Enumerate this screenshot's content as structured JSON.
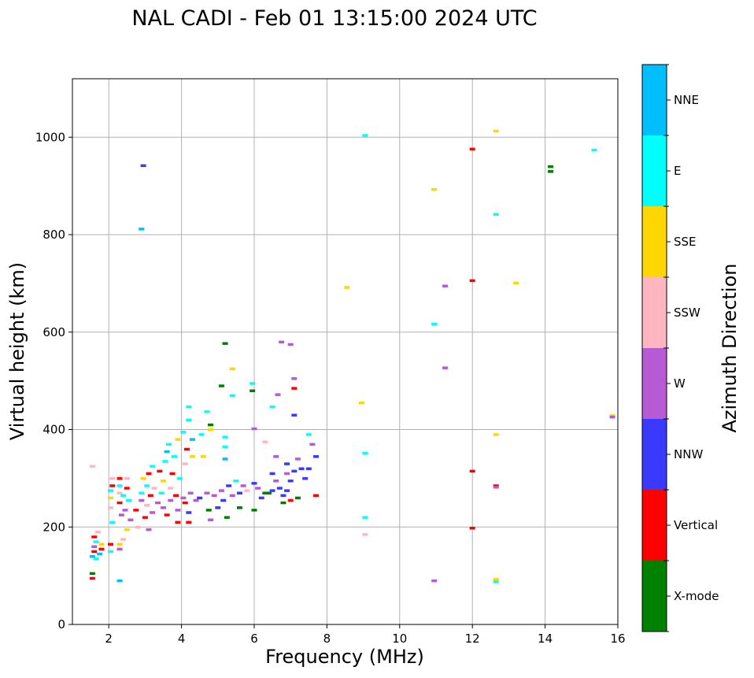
{
  "chart_data": {
    "type": "scatter",
    "title": "NAL CADI - Feb 01 13:15:00 2024 UTC",
    "xlabel": "Frequency (MHz)",
    "ylabel": "Virtual height (km)",
    "xlim": [
      1,
      16
    ],
    "ylim": [
      0,
      1120
    ],
    "xticks": [
      2,
      4,
      6,
      8,
      10,
      12,
      14,
      16
    ],
    "yticks": [
      0,
      200,
      400,
      600,
      800,
      1000
    ],
    "grid": true,
    "colorbar": {
      "label": "Azimuth Direction",
      "categories": [
        {
          "name": "X-mode",
          "color": "#008000"
        },
        {
          "name": "Vertical",
          "color": "#ff0000"
        },
        {
          "name": "NNW",
          "color": "#3a3aff"
        },
        {
          "name": "W",
          "color": "#b65ad6"
        },
        {
          "name": "SSW",
          "color": "#ffb6c1"
        },
        {
          "name": "SSE",
          "color": "#ffd700"
        },
        {
          "name": "E",
          "color": "#00ffff"
        },
        {
          "name": "NNE",
          "color": "#00bfff"
        }
      ]
    },
    "points": [
      {
        "f": 1.55,
        "h": 95,
        "c": "Vertical"
      },
      {
        "f": 1.55,
        "h": 105,
        "c": "X-mode"
      },
      {
        "f": 1.55,
        "h": 140,
        "c": "NNE"
      },
      {
        "f": 1.6,
        "h": 150,
        "c": "Vertical"
      },
      {
        "f": 1.6,
        "h": 160,
        "c": "W"
      },
      {
        "f": 1.65,
        "h": 170,
        "c": "E"
      },
      {
        "f": 1.6,
        "h": 180,
        "c": "Vertical"
      },
      {
        "f": 1.7,
        "h": 190,
        "c": "SSW"
      },
      {
        "f": 1.65,
        "h": 135,
        "c": "E"
      },
      {
        "f": 1.75,
        "h": 145,
        "c": "NNE"
      },
      {
        "f": 1.8,
        "h": 155,
        "c": "Vertical"
      },
      {
        "f": 1.8,
        "h": 165,
        "c": "SSE"
      },
      {
        "f": 1.55,
        "h": 325,
        "c": "SSW"
      },
      {
        "f": 2.05,
        "h": 150,
        "c": "E"
      },
      {
        "f": 2.05,
        "h": 165,
        "c": "Vertical"
      },
      {
        "f": 2.05,
        "h": 240,
        "c": "SSW"
      },
      {
        "f": 2.05,
        "h": 260,
        "c": "SSE"
      },
      {
        "f": 2.05,
        "h": 275,
        "c": "E"
      },
      {
        "f": 2.1,
        "h": 285,
        "c": "Vertical"
      },
      {
        "f": 2.1,
        "h": 300,
        "c": "SSW"
      },
      {
        "f": 2.1,
        "h": 210,
        "c": "E"
      },
      {
        "f": 2.3,
        "h": 90,
        "c": "NNE"
      },
      {
        "f": 2.3,
        "h": 155,
        "c": "W"
      },
      {
        "f": 2.3,
        "h": 165,
        "c": "SSE"
      },
      {
        "f": 2.35,
        "h": 225,
        "c": "W"
      },
      {
        "f": 2.3,
        "h": 250,
        "c": "Vertical"
      },
      {
        "f": 2.3,
        "h": 270,
        "c": "SSW"
      },
      {
        "f": 2.3,
        "h": 285,
        "c": "E"
      },
      {
        "f": 2.3,
        "h": 300,
        "c": "Vertical"
      },
      {
        "f": 2.4,
        "h": 175,
        "c": "SSW"
      },
      {
        "f": 2.4,
        "h": 265,
        "c": "E"
      },
      {
        "f": 2.45,
        "h": 235,
        "c": "W"
      },
      {
        "f": 2.5,
        "h": 195,
        "c": "SSE"
      },
      {
        "f": 2.5,
        "h": 280,
        "c": "Vertical"
      },
      {
        "f": 2.5,
        "h": 300,
        "c": "SSW"
      },
      {
        "f": 2.55,
        "h": 255,
        "c": "E"
      },
      {
        "f": 2.6,
        "h": 215,
        "c": "W"
      },
      {
        "f": 2.75,
        "h": 235,
        "c": "Vertical"
      },
      {
        "f": 2.8,
        "h": 200,
        "c": "SSW"
      },
      {
        "f": 2.9,
        "h": 255,
        "c": "W"
      },
      {
        "f": 2.9,
        "h": 270,
        "c": "E"
      },
      {
        "f": 2.9,
        "h": 812,
        "c": "NNE"
      },
      {
        "f": 2.95,
        "h": 942,
        "c": "NNW"
      },
      {
        "f": 2.95,
        "h": 300,
        "c": "SSE"
      },
      {
        "f": 3.0,
        "h": 220,
        "c": "Vertical"
      },
      {
        "f": 3.05,
        "h": 245,
        "c": "SSW"
      },
      {
        "f": 3.05,
        "h": 285,
        "c": "E"
      },
      {
        "f": 3.1,
        "h": 195,
        "c": "W"
      },
      {
        "f": 3.1,
        "h": 310,
        "c": "Vertical"
      },
      {
        "f": 3.15,
        "h": 265,
        "c": "Vertical"
      },
      {
        "f": 3.2,
        "h": 325,
        "c": "E"
      },
      {
        "f": 3.2,
        "h": 230,
        "c": "W"
      },
      {
        "f": 3.25,
        "h": 280,
        "c": "SSW"
      },
      {
        "f": 3.35,
        "h": 250,
        "c": "W"
      },
      {
        "f": 3.4,
        "h": 315,
        "c": "Vertical"
      },
      {
        "f": 3.45,
        "h": 270,
        "c": "E"
      },
      {
        "f": 3.5,
        "h": 240,
        "c": "W"
      },
      {
        "f": 3.5,
        "h": 295,
        "c": "SSE"
      },
      {
        "f": 3.55,
        "h": 335,
        "c": "E"
      },
      {
        "f": 3.6,
        "h": 355,
        "c": "NNE"
      },
      {
        "f": 3.65,
        "h": 370,
        "c": "E"
      },
      {
        "f": 3.6,
        "h": 225,
        "c": "Vertical"
      },
      {
        "f": 3.7,
        "h": 255,
        "c": "W"
      },
      {
        "f": 3.7,
        "h": 280,
        "c": "SSW"
      },
      {
        "f": 3.75,
        "h": 310,
        "c": "Vertical"
      },
      {
        "f": 3.8,
        "h": 345,
        "c": "E"
      },
      {
        "f": 3.85,
        "h": 265,
        "c": "Vertical"
      },
      {
        "f": 3.9,
        "h": 235,
        "c": "W"
      },
      {
        "f": 3.9,
        "h": 210,
        "c": "Vertical"
      },
      {
        "f": 3.9,
        "h": 380,
        "c": "SSE"
      },
      {
        "f": 3.95,
        "h": 300,
        "c": "E"
      },
      {
        "f": 4.05,
        "h": 395,
        "c": "E"
      },
      {
        "f": 4.05,
        "h": 260,
        "c": "W"
      },
      {
        "f": 4.1,
        "h": 250,
        "c": "Vertical"
      },
      {
        "f": 4.1,
        "h": 330,
        "c": "SSW"
      },
      {
        "f": 4.15,
        "h": 360,
        "c": "Vertical"
      },
      {
        "f": 4.2,
        "h": 230,
        "c": "NNW"
      },
      {
        "f": 4.2,
        "h": 420,
        "c": "E"
      },
      {
        "f": 4.2,
        "h": 447,
        "c": "E"
      },
      {
        "f": 4.2,
        "h": 210,
        "c": "Vertical"
      },
      {
        "f": 4.25,
        "h": 270,
        "c": "W"
      },
      {
        "f": 4.3,
        "h": 345,
        "c": "SSE"
      },
      {
        "f": 4.3,
        "h": 380,
        "c": "NNE"
      },
      {
        "f": 4.4,
        "h": 255,
        "c": "W"
      },
      {
        "f": 4.5,
        "h": 260,
        "c": "NNW"
      },
      {
        "f": 4.55,
        "h": 390,
        "c": "E"
      },
      {
        "f": 4.6,
        "h": 345,
        "c": "SSE"
      },
      {
        "f": 4.7,
        "h": 270,
        "c": "W"
      },
      {
        "f": 4.7,
        "h": 437,
        "c": "E"
      },
      {
        "f": 4.75,
        "h": 235,
        "c": "X-mode"
      },
      {
        "f": 4.8,
        "h": 400,
        "c": "SSE"
      },
      {
        "f": 4.8,
        "h": 410,
        "c": "X-mode"
      },
      {
        "f": 4.8,
        "h": 215,
        "c": "W"
      },
      {
        "f": 4.9,
        "h": 265,
        "c": "W"
      },
      {
        "f": 5.0,
        "h": 240,
        "c": "NNW"
      },
      {
        "f": 5.1,
        "h": 490,
        "c": "X-mode"
      },
      {
        "f": 5.1,
        "h": 275,
        "c": "W"
      },
      {
        "f": 5.15,
        "h": 255,
        "c": "NNW"
      },
      {
        "f": 5.2,
        "h": 577,
        "c": "X-mode"
      },
      {
        "f": 5.2,
        "h": 385,
        "c": "E"
      },
      {
        "f": 5.2,
        "h": 365,
        "c": "E"
      },
      {
        "f": 5.2,
        "h": 340,
        "c": "NNE"
      },
      {
        "f": 5.25,
        "h": 220,
        "c": "X-mode"
      },
      {
        "f": 5.3,
        "h": 285,
        "c": "NNW"
      },
      {
        "f": 5.4,
        "h": 525,
        "c": "SSE"
      },
      {
        "f": 5.4,
        "h": 470,
        "c": "E"
      },
      {
        "f": 5.4,
        "h": 265,
        "c": "W"
      },
      {
        "f": 5.5,
        "h": 295,
        "c": "E"
      },
      {
        "f": 5.6,
        "h": 270,
        "c": "NNW"
      },
      {
        "f": 5.6,
        "h": 240,
        "c": "X-mode"
      },
      {
        "f": 5.7,
        "h": 285,
        "c": "W"
      },
      {
        "f": 5.8,
        "h": 275,
        "c": "SSW"
      },
      {
        "f": 5.95,
        "h": 495,
        "c": "E"
      },
      {
        "f": 5.95,
        "h": 480,
        "c": "X-mode"
      },
      {
        "f": 6.0,
        "h": 402,
        "c": "W"
      },
      {
        "f": 6.0,
        "h": 290,
        "c": "NNW"
      },
      {
        "f": 6.0,
        "h": 235,
        "c": "X-mode"
      },
      {
        "f": 6.1,
        "h": 280,
        "c": "W"
      },
      {
        "f": 6.2,
        "h": 260,
        "c": "NNW"
      },
      {
        "f": 6.3,
        "h": 375,
        "c": "SSW"
      },
      {
        "f": 6.3,
        "h": 270,
        "c": "X-mode"
      },
      {
        "f": 6.4,
        "h": 270,
        "c": "X-mode"
      },
      {
        "f": 6.5,
        "h": 447,
        "c": "E"
      },
      {
        "f": 6.5,
        "h": 275,
        "c": "NNW"
      },
      {
        "f": 6.5,
        "h": 310,
        "c": "NNW"
      },
      {
        "f": 6.6,
        "h": 345,
        "c": "W"
      },
      {
        "f": 6.6,
        "h": 295,
        "c": "W"
      },
      {
        "f": 6.65,
        "h": 472,
        "c": "W"
      },
      {
        "f": 6.7,
        "h": 280,
        "c": "NNW"
      },
      {
        "f": 6.75,
        "h": 580,
        "c": "W"
      },
      {
        "f": 6.8,
        "h": 265,
        "c": "NNW"
      },
      {
        "f": 6.8,
        "h": 250,
        "c": "X-mode"
      },
      {
        "f": 6.9,
        "h": 275,
        "c": "NNW"
      },
      {
        "f": 6.9,
        "h": 310,
        "c": "W"
      },
      {
        "f": 6.9,
        "h": 330,
        "c": "NNW"
      },
      {
        "f": 7.0,
        "h": 255,
        "c": "Vertical"
      },
      {
        "f": 7.0,
        "h": 295,
        "c": "NNW"
      },
      {
        "f": 7.0,
        "h": 575,
        "c": "W"
      },
      {
        "f": 7.1,
        "h": 505,
        "c": "W"
      },
      {
        "f": 7.1,
        "h": 485,
        "c": "Vertical"
      },
      {
        "f": 7.1,
        "h": 315,
        "c": "NNW"
      },
      {
        "f": 7.1,
        "h": 430,
        "c": "NNW"
      },
      {
        "f": 7.2,
        "h": 260,
        "c": "X-mode"
      },
      {
        "f": 7.2,
        "h": 340,
        "c": "W"
      },
      {
        "f": 7.3,
        "h": 320,
        "c": "NNW"
      },
      {
        "f": 7.4,
        "h": 300,
        "c": "NNW"
      },
      {
        "f": 7.5,
        "h": 390,
        "c": "E"
      },
      {
        "f": 7.5,
        "h": 320,
        "c": "NNW"
      },
      {
        "f": 7.6,
        "h": 370,
        "c": "W"
      },
      {
        "f": 7.7,
        "h": 345,
        "c": "NNW"
      },
      {
        "f": 7.7,
        "h": 265,
        "c": "Vertical"
      },
      {
        "f": 8.55,
        "h": 692,
        "c": "SSE"
      },
      {
        "f": 8.95,
        "h": 455,
        "c": "SSE"
      },
      {
        "f": 9.05,
        "h": 1004,
        "c": "E"
      },
      {
        "f": 9.05,
        "h": 352,
        "c": "E"
      },
      {
        "f": 9.05,
        "h": 220,
        "c": "E"
      },
      {
        "f": 9.05,
        "h": 185,
        "c": "SSW"
      },
      {
        "f": 10.95,
        "h": 893,
        "c": "SSE"
      },
      {
        "f": 10.95,
        "h": 617,
        "c": "E"
      },
      {
        "f": 10.95,
        "h": 90,
        "c": "W"
      },
      {
        "f": 11.25,
        "h": 695,
        "c": "W"
      },
      {
        "f": 11.25,
        "h": 527,
        "c": "W"
      },
      {
        "f": 12.0,
        "h": 976,
        "c": "Vertical"
      },
      {
        "f": 12.0,
        "h": 706,
        "c": "Vertical"
      },
      {
        "f": 12.0,
        "h": 315,
        "c": "Vertical"
      },
      {
        "f": 12.0,
        "h": 198,
        "c": "Vertical"
      },
      {
        "f": 12.65,
        "h": 1013,
        "c": "SSE"
      },
      {
        "f": 12.65,
        "h": 842,
        "c": "E"
      },
      {
        "f": 12.65,
        "h": 390,
        "c": "SSE"
      },
      {
        "f": 12.65,
        "h": 285,
        "c": "Vertical"
      },
      {
        "f": 12.65,
        "h": 282,
        "c": "W"
      },
      {
        "f": 12.65,
        "h": 93,
        "c": "SSE"
      },
      {
        "f": 12.65,
        "h": 88,
        "c": "E"
      },
      {
        "f": 13.2,
        "h": 701,
        "c": "SSE"
      },
      {
        "f": 14.15,
        "h": 940,
        "c": "X-mode"
      },
      {
        "f": 14.15,
        "h": 930,
        "c": "X-mode"
      },
      {
        "f": 15.35,
        "h": 974,
        "c": "E"
      },
      {
        "f": 15.85,
        "h": 429,
        "c": "SSE"
      },
      {
        "f": 15.85,
        "h": 426,
        "c": "W"
      }
    ]
  }
}
